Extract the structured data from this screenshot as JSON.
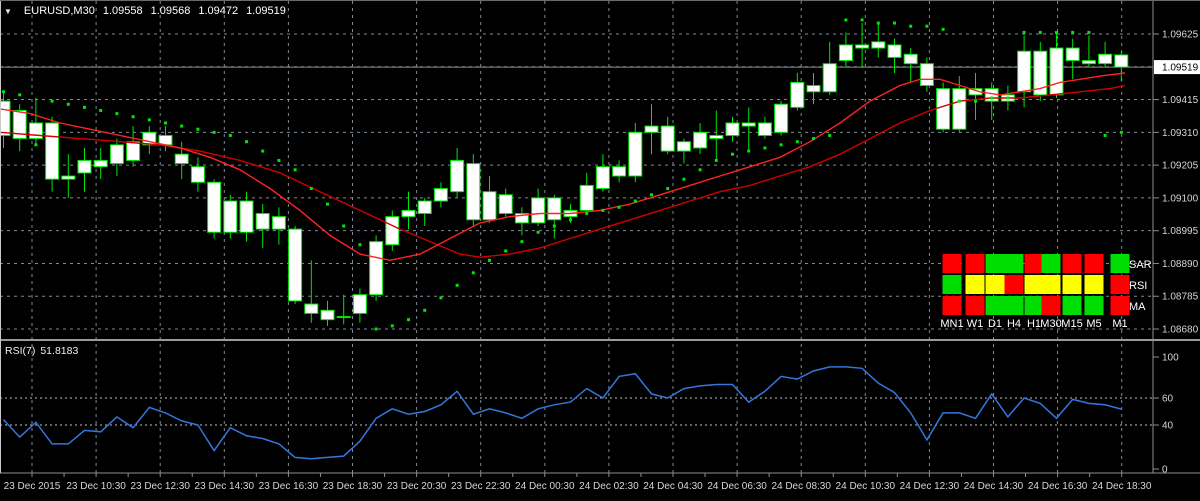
{
  "window": {
    "symbol_period": "EURUSD,M30",
    "ohlc": {
      "open": "1.09558",
      "high": "1.09568",
      "low": "1.09472",
      "close": "1.09519"
    }
  },
  "colors": {
    "background": "#000000",
    "grid": "#7d8a97",
    "candle_outline": "#00e606",
    "candle_body": "#ffffff",
    "sar_dot": "#00e606",
    "ma_fast": "#ff2222",
    "ma_slow": "#d10000",
    "rsi_line": "#3377dd",
    "price_line": "#8c8c8c",
    "axis_text": "#d6d6d6",
    "signal_red": "#ff0000",
    "signal_green": "#00dd00",
    "signal_yellow": "#ffff00"
  },
  "price_scale": {
    "labels": [
      "1.09625",
      "1.09415",
      "1.09310",
      "1.09205",
      "1.09100",
      "1.08995",
      "1.08890",
      "1.08785",
      "1.08680"
    ],
    "label_grid_index": [
      0,
      2,
      3,
      4,
      5,
      6,
      7,
      8,
      9
    ],
    "current_price_label": "1.09519"
  },
  "time_axis": {
    "labels": [
      "23 Dec 2015",
      "23 Dec 10:30",
      "23 Dec 12:30",
      "23 Dec 14:30",
      "23 Dec 16:30",
      "23 Dec 18:30",
      "23 Dec 20:30",
      "23 Dec 22:30",
      "24 Dec 00:30",
      "24 Dec 02:30",
      "24 Dec 04:30",
      "24 Dec 06:30",
      "24 Dec 08:30",
      "24 Dec 10:30",
      "24 Dec 12:30",
      "24 Dec 14:30",
      "24 Dec 16:30",
      "24 Dec 18:30"
    ]
  },
  "dashboard": {
    "columns": [
      "MN1",
      "W1",
      "D1",
      "H4",
      "H1",
      "M30",
      "M15",
      "M5",
      "M1"
    ],
    "rows": [
      {
        "label": "SAR",
        "cells": [
          "red",
          "red",
          "green",
          "green",
          "red",
          "green",
          "red",
          "red",
          "green"
        ]
      },
      {
        "label": "RSI",
        "cells": [
          "green",
          "yellow",
          "yellow",
          "red",
          "yellow",
          "yellow",
          "yellow",
          "yellow",
          "red"
        ]
      },
      {
        "label": "MA",
        "cells": [
          "red",
          "red",
          "green",
          "green",
          "green",
          "red",
          "green",
          "green",
          "red"
        ]
      }
    ]
  },
  "rsi_panel": {
    "label": "RSI(7)",
    "value": "51.8183",
    "scale_labels": [
      "100",
      "60",
      "40",
      "0"
    ]
  },
  "chart_data": {
    "type": "candlestick",
    "symbol": "EURUSD",
    "timeframe": "M30",
    "price_axis": {
      "top_price": 1.09625,
      "grid_step": 0.00105,
      "levels": 10,
      "current_price": 1.09519
    },
    "candles": [
      [
        1.0941,
        1.0944,
        1.0926,
        1.093
      ],
      [
        1.0938,
        1.094,
        1.0925,
        1.0929
      ],
      [
        1.0929,
        1.0942,
        1.0927,
        1.0934
      ],
      [
        1.0934,
        1.0936,
        1.0912,
        1.0916
      ],
      [
        1.0916,
        1.0924,
        1.091,
        1.0917
      ],
      [
        1.0922,
        1.0926,
        1.0912,
        1.0918
      ],
      [
        1.092,
        1.0926,
        1.0916,
        1.0922
      ],
      [
        1.0921,
        1.0929,
        1.0917,
        1.0927
      ],
      [
        1.0928,
        1.0933,
        1.092,
        1.0922
      ],
      [
        1.0927,
        1.0933,
        1.0924,
        1.0931
      ],
      [
        1.093,
        1.0933,
        1.0925,
        1.0927
      ],
      [
        1.0924,
        1.0928,
        1.0916,
        1.0921
      ],
      [
        1.092,
        1.0923,
        1.0912,
        1.0915
      ],
      [
        1.0915,
        1.0916,
        1.0897,
        1.0899
      ],
      [
        1.0899,
        1.0911,
        1.0897,
        1.0909
      ],
      [
        1.0909,
        1.0912,
        1.0896,
        1.0899
      ],
      [
        1.09,
        1.0908,
        1.0894,
        1.0905
      ],
      [
        1.0904,
        1.0907,
        1.0895,
        1.09
      ],
      [
        1.09,
        1.0901,
        1.0876,
        1.0877
      ],
      [
        1.0876,
        1.089,
        1.087,
        1.0873
      ],
      [
        1.0874,
        1.0877,
        1.0869,
        1.0871
      ],
      [
        1.0872,
        1.0879,
        1.08695,
        1.0872
      ],
      [
        1.0873,
        1.0881,
        1.087,
        1.0879
      ],
      [
        1.0879,
        1.0898,
        1.0877,
        1.0896
      ],
      [
        1.0895,
        1.0906,
        1.0893,
        1.0904
      ],
      [
        1.0904,
        1.0912,
        1.09,
        1.0906
      ],
      [
        1.0905,
        1.091,
        1.0901,
        1.0909
      ],
      [
        1.0909,
        1.0915,
        1.0907,
        1.0913
      ],
      [
        1.0912,
        1.0926,
        1.091,
        1.0922
      ],
      [
        1.0921,
        1.0924,
        1.0901,
        1.0903
      ],
      [
        1.0903,
        1.0917,
        1.0902,
        1.0912
      ],
      [
        1.0911,
        1.0913,
        1.0904,
        1.0905
      ],
      [
        1.0905,
        1.0907,
        1.0898,
        1.0902
      ],
      [
        1.0902,
        1.0913,
        1.0901,
        1.091
      ],
      [
        1.091,
        1.0911,
        1.0897,
        1.0903
      ],
      [
        1.0904,
        1.0908,
        1.0902,
        1.0906
      ],
      [
        1.0906,
        1.0918,
        1.0905,
        1.0914
      ],
      [
        1.0913,
        1.0924,
        1.0912,
        1.092
      ],
      [
        1.092,
        1.0922,
        1.0915,
        1.0917
      ],
      [
        1.0917,
        1.0934,
        1.0915,
        1.0931
      ],
      [
        1.0931,
        1.094,
        1.0924,
        1.0933
      ],
      [
        1.0933,
        1.0936,
        1.0924,
        1.0925
      ],
      [
        1.0925,
        1.0929,
        1.0921,
        1.0928
      ],
      [
        1.0926,
        1.0934,
        1.0924,
        1.0931
      ],
      [
        1.093,
        1.0938,
        1.0922,
        1.0929
      ],
      [
        1.093,
        1.0936,
        1.0928,
        1.0934
      ],
      [
        1.0934,
        1.0939,
        1.0925,
        1.0933
      ],
      [
        1.0934,
        1.0936,
        1.0929,
        1.093
      ],
      [
        1.0931,
        1.0941,
        1.093,
        1.094
      ],
      [
        1.0939,
        1.095,
        1.0938,
        1.0947
      ],
      [
        1.0946,
        1.095,
        1.094,
        1.0944
      ],
      [
        1.0944,
        1.096,
        1.0943,
        1.0953
      ],
      [
        1.0954,
        1.0963,
        1.0952,
        1.0959
      ],
      [
        1.0959,
        1.0966,
        1.0952,
        1.0958
      ],
      [
        1.0958,
        1.0966,
        1.0955,
        1.096
      ],
      [
        1.0959,
        1.0961,
        1.095,
        1.0955
      ],
      [
        1.0956,
        1.0958,
        1.0947,
        1.0953
      ],
      [
        1.0953,
        1.0955,
        1.0944,
        1.0946
      ],
      [
        1.0945,
        1.0947,
        1.0931,
        1.0932
      ],
      [
        1.0932,
        1.0949,
        1.0931,
        1.0945
      ],
      [
        1.0945,
        1.095,
        1.0935,
        1.0943
      ],
      [
        1.0945,
        1.0947,
        1.0935,
        1.0941
      ],
      [
        1.0941,
        1.0946,
        1.0938,
        1.0943
      ],
      [
        1.0944,
        1.0962,
        1.0939,
        1.0957
      ],
      [
        1.0957,
        1.096,
        1.0941,
        1.0943
      ],
      [
        1.0943,
        1.0963,
        1.0942,
        1.0958
      ],
      [
        1.0958,
        1.0961,
        1.0948,
        1.0954
      ],
      [
        1.0954,
        1.0962,
        1.0952,
        1.0953
      ],
      [
        1.0953,
        1.096,
        1.0952,
        1.0956
      ],
      [
        1.09558,
        1.09568,
        1.09472,
        1.09519
      ]
    ],
    "parabolic_sar": [
      1.0944,
      1.0943,
      1.0927,
      1.0941,
      1.094,
      1.0939,
      1.0938,
      1.0937,
      1.0936,
      1.0935,
      1.0934,
      1.0933,
      1.0932,
      1.0931,
      1.093,
      1.0928,
      1.0925,
      1.0922,
      1.0919,
      1.0913,
      1.0908,
      1.0901,
      1.0895,
      1.0868,
      1.0869,
      1.0871,
      1.0874,
      1.0878,
      1.0882,
      1.0886,
      1.089,
      1.0893,
      1.0896,
      1.0899,
      1.0901,
      1.0903,
      1.0905,
      1.0906,
      1.0907,
      1.0909,
      1.0911,
      1.0913,
      1.0916,
      1.0919,
      1.0922,
      1.0924,
      1.0925,
      1.0926,
      1.0927,
      1.0928,
      1.0929,
      1.093,
      1.0967,
      1.0967,
      1.0966,
      1.0966,
      1.0965,
      1.0965,
      1.0964,
      1.0941,
      1.0941,
      1.0942,
      1.0942,
      1.0963,
      1.0963,
      1.0963,
      1.0963,
      1.0963,
      1.093,
      1.0931
    ],
    "ma_fast_points": [
      [
        0,
        1.09385
      ],
      [
        30,
        1.0937
      ],
      [
        60,
        1.0934
      ],
      [
        90,
        1.0932
      ],
      [
        120,
        1.093
      ],
      [
        150,
        1.0928
      ],
      [
        180,
        1.0926
      ],
      [
        210,
        1.0923
      ],
      [
        240,
        1.0919
      ],
      [
        270,
        1.0913
      ],
      [
        300,
        1.0906
      ],
      [
        330,
        1.0898
      ],
      [
        360,
        1.0892
      ],
      [
        390,
        1.089
      ],
      [
        420,
        1.0892
      ],
      [
        450,
        1.0897
      ],
      [
        480,
        1.0902
      ],
      [
        510,
        1.0904
      ],
      [
        540,
        1.0905
      ],
      [
        570,
        1.0905
      ],
      [
        600,
        1.0906
      ],
      [
        630,
        1.0908
      ],
      [
        660,
        1.0911
      ],
      [
        690,
        1.0914
      ],
      [
        720,
        1.0917
      ],
      [
        750,
        1.092
      ],
      [
        780,
        1.0923
      ],
      [
        810,
        1.0928
      ],
      [
        840,
        1.0934
      ],
      [
        870,
        1.0941
      ],
      [
        900,
        1.0946
      ],
      [
        920,
        1.0948
      ],
      [
        940,
        1.0948
      ],
      [
        960,
        1.0946
      ],
      [
        980,
        1.0944
      ],
      [
        1000,
        1.0943
      ],
      [
        1020,
        1.0944
      ],
      [
        1040,
        1.0945
      ],
      [
        1060,
        1.0947
      ],
      [
        1080,
        1.0948
      ],
      [
        1100,
        1.0949
      ],
      [
        1125,
        1.095
      ]
    ],
    "ma_slow_points": [
      [
        0,
        1.0931
      ],
      [
        40,
        1.093
      ],
      [
        80,
        1.0929
      ],
      [
        120,
        1.0928
      ],
      [
        160,
        1.0927
      ],
      [
        200,
        1.0925
      ],
      [
        240,
        1.0922
      ],
      [
        280,
        1.0918
      ],
      [
        320,
        1.0912
      ],
      [
        360,
        1.0906
      ],
      [
        400,
        1.09
      ],
      [
        430,
        1.0896
      ],
      [
        460,
        1.0892
      ],
      [
        480,
        1.0891
      ],
      [
        510,
        1.0892
      ],
      [
        540,
        1.0894
      ],
      [
        570,
        1.0897
      ],
      [
        600,
        1.09
      ],
      [
        630,
        1.0903
      ],
      [
        660,
        1.0906
      ],
      [
        690,
        1.0909
      ],
      [
        720,
        1.0912
      ],
      [
        750,
        1.0914
      ],
      [
        780,
        1.0917
      ],
      [
        810,
        1.092
      ],
      [
        840,
        1.0924
      ],
      [
        870,
        1.0929
      ],
      [
        900,
        1.0934
      ],
      [
        930,
        1.0938
      ],
      [
        960,
        1.0941
      ],
      [
        990,
        1.0942
      ],
      [
        1020,
        1.0942
      ],
      [
        1050,
        1.0943
      ],
      [
        1080,
        1.0944
      ],
      [
        1110,
        1.0945
      ],
      [
        1125,
        1.0946
      ]
    ],
    "rsi": {
      "period": 7,
      "current": 51.8183,
      "levels": [
        40,
        60
      ],
      "range": [
        0,
        100
      ],
      "values": [
        44,
        31,
        42,
        26,
        26,
        36,
        35,
        46,
        38,
        53,
        49,
        43,
        40,
        21,
        38,
        32,
        30,
        26,
        16,
        15,
        16,
        17,
        28,
        45,
        52,
        48,
        50,
        55,
        65,
        48,
        52,
        49,
        45,
        52,
        55,
        57,
        67,
        60,
        76,
        78,
        63,
        60,
        67,
        69,
        70,
        70,
        57,
        65,
        76,
        74,
        80,
        83,
        83,
        82,
        71,
        64,
        49,
        29,
        49,
        49,
        45,
        63,
        46,
        60,
        56,
        45,
        59,
        56,
        55,
        51.8
      ]
    }
  }
}
